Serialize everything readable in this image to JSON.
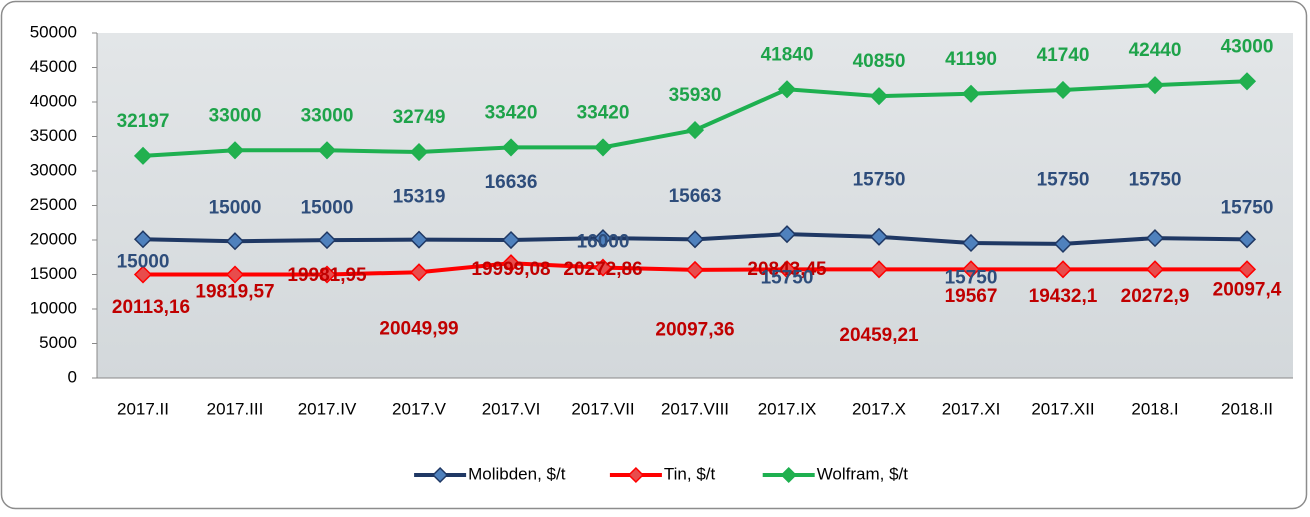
{
  "chart_data": {
    "type": "line",
    "categories": [
      "2017.II",
      "2017.III",
      "2017.IV",
      "2017.V",
      "2017.VI",
      "2017.VII",
      "2017.VIII",
      "2017.IX",
      "2017.X",
      "2017.XI",
      "2017.XII",
      "2018.I",
      "2018.II"
    ],
    "series": [
      {
        "name": "Molibden, $/t",
        "color": "#1f3864",
        "marker_color": "#4f81bd",
        "label_color": "#c00000",
        "values": [
          20113.16,
          19819.57,
          19981.95,
          20049.99,
          19999.08,
          20272.86,
          20097.36,
          20843.45,
          20459.21,
          19567,
          19432.1,
          20272.9,
          20097.4
        ],
        "value_labels": [
          "20113,16",
          "19819,57",
          "19981,95",
          "20049,99",
          "19999,08",
          "20272,86",
          "20097,36",
          "20843,45",
          "20459,21",
          "19567",
          "19432,1",
          "20272,9",
          "20097,4"
        ]
      },
      {
        "name": "Tin, $/t",
        "color": "#ff0000",
        "marker_color": "#e84c4c",
        "label_color": "#2e4d7b",
        "values": [
          15000,
          15000,
          15000,
          15319,
          16636,
          16000,
          15663,
          15750,
          15750,
          15750,
          15750,
          15750,
          15750
        ]
      },
      {
        "name": "Wolfram, $/t",
        "color": "#1eb050",
        "marker_color": "#22b04e",
        "label_color": "#1ea34a",
        "values": [
          32197,
          33000,
          33000,
          32749,
          33420,
          33420,
          35930,
          41840,
          40850,
          41190,
          41740,
          42440,
          43000
        ]
      }
    ],
    "ylim": [
      0,
      50000
    ],
    "yticks": [
      0,
      5000,
      10000,
      15000,
      20000,
      25000,
      30000,
      35000,
      40000,
      45000,
      50000
    ],
    "grid": false,
    "legend": "bottom"
  }
}
